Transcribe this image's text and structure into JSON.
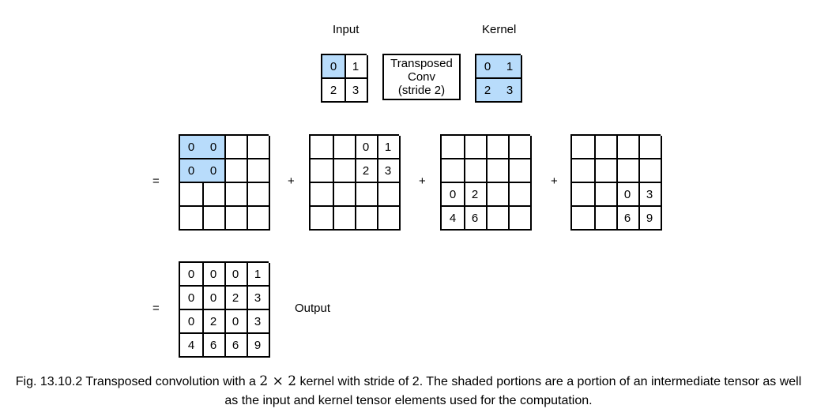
{
  "header": {
    "input_label": "Input",
    "kernel_label": "Kernel"
  },
  "operation": {
    "line1": "Transposed",
    "line2": "Conv",
    "line3": "(stride 2)"
  },
  "input_grid": {
    "values": [
      [
        "0",
        "1"
      ],
      [
        "2",
        "3"
      ]
    ],
    "shaded": [
      [
        true,
        false
      ],
      [
        false,
        false
      ]
    ]
  },
  "kernel_grid": {
    "values": [
      [
        "0",
        "1"
      ],
      [
        "2",
        "3"
      ]
    ],
    "shaded": [
      [
        true,
        true
      ],
      [
        true,
        true
      ]
    ]
  },
  "intermediates": [
    {
      "values": [
        [
          "0",
          "0",
          "",
          ""
        ],
        [
          "0",
          "0",
          "",
          ""
        ],
        [
          "",
          "",
          "",
          ""
        ],
        [
          "",
          "",
          "",
          ""
        ]
      ],
      "shaded": [
        [
          true,
          true,
          false,
          false
        ],
        [
          true,
          true,
          false,
          false
        ],
        [
          false,
          false,
          false,
          false
        ],
        [
          false,
          false,
          false,
          false
        ]
      ]
    },
    {
      "values": [
        [
          "",
          "",
          "0",
          "1"
        ],
        [
          "",
          "",
          "2",
          "3"
        ],
        [
          "",
          "",
          "",
          ""
        ],
        [
          "",
          "",
          "",
          ""
        ]
      ],
      "shaded": [
        [
          false,
          false,
          false,
          false
        ],
        [
          false,
          false,
          false,
          false
        ],
        [
          false,
          false,
          false,
          false
        ],
        [
          false,
          false,
          false,
          false
        ]
      ]
    },
    {
      "values": [
        [
          "",
          "",
          "",
          ""
        ],
        [
          "",
          "",
          "",
          ""
        ],
        [
          "0",
          "2",
          "",
          ""
        ],
        [
          "4",
          "6",
          "",
          ""
        ]
      ],
      "shaded": [
        [
          false,
          false,
          false,
          false
        ],
        [
          false,
          false,
          false,
          false
        ],
        [
          false,
          false,
          false,
          false
        ],
        [
          false,
          false,
          false,
          false
        ]
      ]
    },
    {
      "values": [
        [
          "",
          "",
          "",
          ""
        ],
        [
          "",
          "",
          "",
          ""
        ],
        [
          "",
          "",
          "0",
          "3"
        ],
        [
          "",
          "",
          "6",
          "9"
        ]
      ],
      "shaded": [
        [
          false,
          false,
          false,
          false
        ],
        [
          false,
          false,
          false,
          false
        ],
        [
          false,
          false,
          false,
          false
        ],
        [
          false,
          false,
          false,
          false
        ]
      ]
    }
  ],
  "output_grid": {
    "values": [
      [
        "0",
        "0",
        "0",
        "1"
      ],
      [
        "0",
        "0",
        "2",
        "3"
      ],
      [
        "0",
        "2",
        "0",
        "3"
      ],
      [
        "4",
        "6",
        "6",
        "9"
      ]
    ]
  },
  "symbols": {
    "equals": "=",
    "plus": "+"
  },
  "output_label": "Output",
  "caption": {
    "prefix": "Fig. 13.10.2  Transposed convolution with a ",
    "math": "2 × 2",
    "suffix": " kernel with stride of 2. The shaded portions are a portion of an intermediate tensor as well",
    "line2": "as the input and kernel tensor elements used for the computation."
  },
  "colors": {
    "shade": "#b8dcfb",
    "line": "#000000"
  }
}
